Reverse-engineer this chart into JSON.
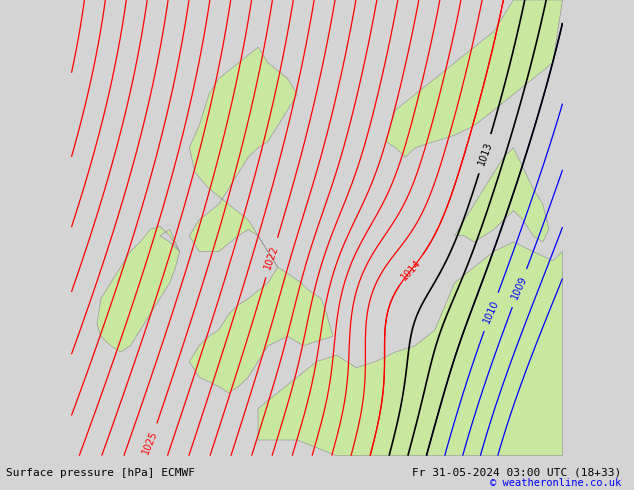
{
  "title_left": "Surface pressure [hPa] ECMWF",
  "title_right": "Fr 31-05-2024 03:00 UTC (18+33)",
  "copyright": "© weatheronline.co.uk",
  "bg_color": "#d4d4d4",
  "land_color": "#c8e8a0",
  "border_color": "#999999",
  "red_color": "#ff0000",
  "black_color": "#000000",
  "blue_color": "#0000ff",
  "fig_width": 6.34,
  "fig_height": 4.9,
  "dpi": 100,
  "lon_min": -11.5,
  "lon_max": 13.5,
  "lat_min": 48.0,
  "lat_max": 62.5,
  "gb_lons": [
    -2.0,
    -1.5,
    -0.5,
    0.3,
    1.8,
    1.5,
    1.2,
    0.5,
    0.2,
    -0.5,
    -1.0,
    -1.5,
    -2.0,
    -2.5,
    -3.0,
    -4.0,
    -5.0,
    -5.5,
    -5.0,
    -4.0,
    -3.5,
    -3.0,
    -2.5,
    -2.0,
    -1.5,
    -1.0,
    -0.5,
    0.0,
    -0.5,
    -1.5,
    -2.0,
    -3.0,
    -4.0,
    -4.5,
    -5.0,
    -5.5,
    -5.2,
    -4.5,
    -3.5,
    -2.5,
    -2.0,
    -1.5,
    -1.0,
    -1.5,
    -2.5,
    -3.0,
    -3.5,
    -4.0,
    -4.5,
    -5.0,
    -5.5,
    -5.0,
    -4.0,
    -3.5,
    -3.0,
    -2.5,
    -2.0
  ],
  "gb_lats": [
    51.0,
    51.5,
    51.8,
    51.5,
    51.8,
    52.5,
    53.0,
    53.3,
    53.5,
    53.8,
    54.0,
    54.5,
    55.0,
    55.2,
    55.0,
    54.5,
    54.5,
    55.0,
    55.5,
    56.0,
    56.5,
    57.0,
    57.5,
    57.8,
    58.0,
    58.5,
    59.0,
    59.5,
    60.0,
    60.5,
    61.0,
    60.5,
    60.0,
    59.5,
    58.5,
    57.8,
    57.0,
    56.5,
    56.0,
    55.5,
    55.0,
    54.5,
    54.0,
    53.5,
    53.0,
    52.8,
    52.5,
    52.0,
    51.8,
    51.5,
    51.0,
    50.5,
    50.2,
    50.0,
    50.2,
    50.5,
    51.0
  ],
  "ire_lons": [
    -6.0,
    -6.5,
    -7.0,
    -7.5,
    -8.0,
    -8.5,
    -9.0,
    -9.5,
    -10.0,
    -10.2,
    -10.0,
    -9.5,
    -9.0,
    -8.5,
    -8.0,
    -7.5,
    -7.0,
    -6.5,
    -6.2,
    -6.0,
    -6.5,
    -7.0,
    -6.5,
    -6.0
  ],
  "ire_lats": [
    54.5,
    55.0,
    55.3,
    55.2,
    54.8,
    54.5,
    54.0,
    53.5,
    53.0,
    52.2,
    51.8,
    51.5,
    51.3,
    51.5,
    52.0,
    52.5,
    53.0,
    53.5,
    54.0,
    54.5,
    54.8,
    55.0,
    55.2,
    54.5
  ],
  "norway_lons": [
    4.5,
    5.0,
    5.5,
    6.0,
    7.0,
    8.0,
    9.0,
    10.0,
    11.0,
    12.0,
    13.0,
    13.5,
    13.0,
    12.0,
    11.0,
    10.5,
    10.0,
    9.0,
    8.0,
    7.0,
    6.0,
    5.0,
    4.5
  ],
  "norway_lats": [
    58.0,
    57.8,
    57.5,
    57.8,
    58.0,
    58.2,
    58.5,
    59.0,
    59.5,
    60.0,
    60.5,
    62.5,
    62.5,
    62.5,
    62.5,
    62.0,
    61.5,
    61.0,
    60.5,
    60.0,
    59.5,
    59.0,
    58.0
  ],
  "denmark_lons": [
    8.0,
    8.5,
    9.0,
    9.5,
    10.0,
    10.5,
    11.0,
    12.0,
    12.5,
    12.8,
    12.5,
    12.0,
    11.5,
    11.0,
    10.5,
    10.0,
    9.5,
    9.0,
    8.5,
    8.0
  ],
  "denmark_lats": [
    55.0,
    55.5,
    56.0,
    56.5,
    57.0,
    57.5,
    57.8,
    56.5,
    56.0,
    55.2,
    54.8,
    55.0,
    55.5,
    55.8,
    55.5,
    55.2,
    55.0,
    54.8,
    55.0,
    55.0
  ],
  "europe_lons": [
    -2.0,
    -1.0,
    0.0,
    1.0,
    2.0,
    2.5,
    3.0,
    4.0,
    5.0,
    6.0,
    7.0,
    8.0,
    9.0,
    10.0,
    11.0,
    12.0,
    13.0,
    13.5,
    13.5,
    10.0,
    7.0,
    4.0,
    2.0,
    0.0,
    -2.0,
    -2.0
  ],
  "europe_lats": [
    49.5,
    50.0,
    50.5,
    51.0,
    51.2,
    51.0,
    50.8,
    51.0,
    51.3,
    51.5,
    52.0,
    53.5,
    54.0,
    54.5,
    54.8,
    54.5,
    54.2,
    54.5,
    48.0,
    48.0,
    48.0,
    48.0,
    48.0,
    48.5,
    48.5,
    49.5
  ],
  "netherlands_lons": [
    3.5,
    4.0,
    4.5,
    5.0,
    5.5,
    6.0,
    6.5,
    7.0,
    7.0,
    6.5,
    6.0,
    5.5,
    5.0,
    4.5,
    4.0,
    3.5
  ],
  "netherlands_lats": [
    51.5,
    51.8,
    52.0,
    52.5,
    53.0,
    53.2,
    53.4,
    53.5,
    52.5,
    52.0,
    51.8,
    51.5,
    51.3,
    51.2,
    51.3,
    51.5
  ]
}
